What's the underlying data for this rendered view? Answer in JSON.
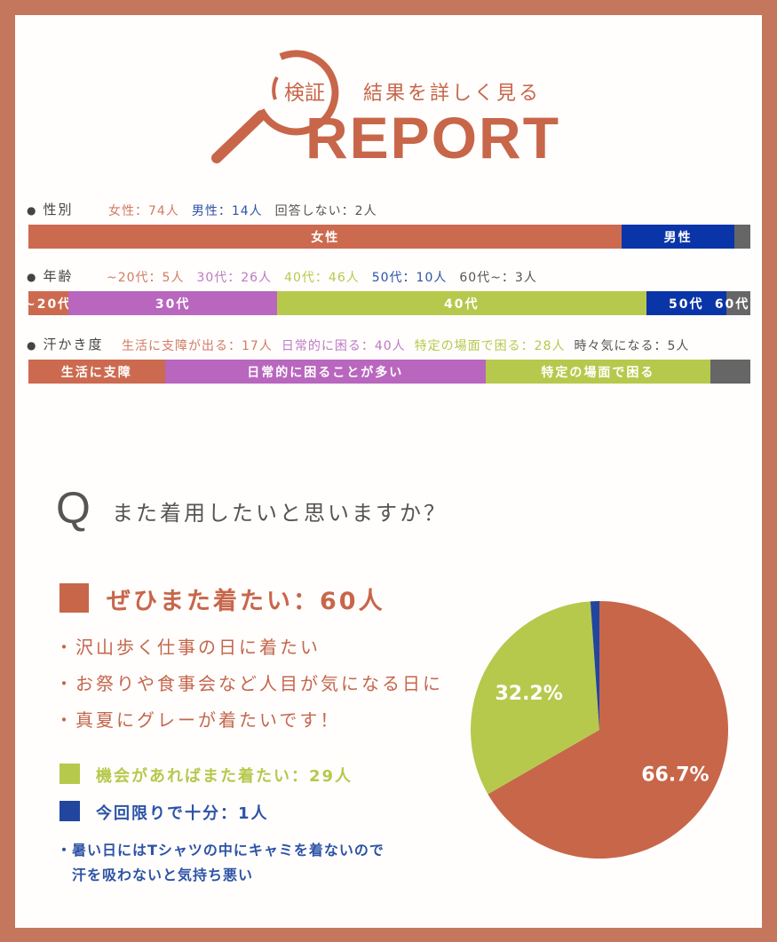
{
  "header": {
    "badge": "検証",
    "subtitle": "結果を詳しく見る",
    "title": "REPORT",
    "icon": "magnifier-icon"
  },
  "colors": {
    "frame": "#c4775c",
    "accent": "#c8664a",
    "female": "#cc6a50",
    "male": "#0a35a8",
    "purple": "#b866be",
    "green": "#b6c94c",
    "navy": "#0a35a8",
    "gray": "#666666",
    "blue_text": "#2d53a6"
  },
  "demographics": [
    {
      "label": "性別",
      "legend": [
        {
          "text": "女性：74人",
          "color": "#d27b63"
        },
        {
          "text": "男性：14人",
          "color": "#2d53a6"
        },
        {
          "text": "回答しない：2人",
          "color": "#555555"
        }
      ],
      "segments": [
        {
          "label": "女性",
          "value": 74,
          "color": "#cc6a50"
        },
        {
          "label": "男性",
          "value": 14,
          "color": "#0a35a8"
        },
        {
          "label": "",
          "value": 2,
          "color": "#666666"
        }
      ]
    },
    {
      "label": "年齢",
      "legend": [
        {
          "text": "~20代：5人",
          "color": "#d27b63"
        },
        {
          "text": "30代：26人",
          "color": "#bd7ac4"
        },
        {
          "text": "40代：46人",
          "color": "#b6c94c"
        },
        {
          "text": "50代：10人",
          "color": "#2d53a6"
        },
        {
          "text": "60代~：3人",
          "color": "#555555"
        }
      ],
      "segments": [
        {
          "label": "~20代",
          "value": 5,
          "color": "#cc6a50"
        },
        {
          "label": "30代",
          "value": 26,
          "color": "#b866be"
        },
        {
          "label": "40代",
          "value": 46,
          "color": "#b6c94c"
        },
        {
          "label": "50代",
          "value": 10,
          "color": "#0a35a8"
        },
        {
          "label": "60代~",
          "value": 3,
          "color": "#666666"
        }
      ]
    },
    {
      "label": "汗かき度",
      "legend": [
        {
          "text": "生活に支障が出る：17人",
          "color": "#d27b63"
        },
        {
          "text": "日常的に困る：40人",
          "color": "#bd7ac4"
        },
        {
          "text": "特定の場面で困る：28人",
          "color": "#b6c94c"
        },
        {
          "text": "時々気になる：5人",
          "color": "#555555"
        }
      ],
      "segments": [
        {
          "label": "生活に支障",
          "value": 17,
          "color": "#cc6a50"
        },
        {
          "label": "日常的に困ることが多い",
          "value": 40,
          "color": "#b866be"
        },
        {
          "label": "特定の場面で困る",
          "value": 28,
          "color": "#b6c94c"
        },
        {
          "label": "",
          "value": 5,
          "color": "#666666"
        }
      ]
    }
  ],
  "question": {
    "mark": "Q",
    "text": "また着用したいと思いますか？"
  },
  "answers": {
    "main": {
      "label": "ぜひまた着たい：60人",
      "comments": [
        "・沢山歩く仕事の日に着たい",
        "・お祭りや食事会など人目が気になる日に",
        "・真夏にグレーが着たいです！"
      ]
    },
    "second": {
      "label": "機会があればまた着たい：29人"
    },
    "third": {
      "label": "今回限りで十分：1人",
      "comments": [
        "・暑い日にはTシャツの中にキャミを着ないので",
        "　汗を吸わないと気持ち悪い"
      ]
    }
  },
  "chart_data": {
    "type": "pie",
    "categories": [
      "ぜひまた着たい",
      "機会があればまた着たい",
      "今回限りで十分"
    ],
    "values": [
      60,
      29,
      1
    ],
    "percent_labels": [
      "66.7%",
      "32.2%",
      ""
    ],
    "colors": [
      "#c8664a",
      "#b6c94c",
      "#22459e"
    ]
  }
}
